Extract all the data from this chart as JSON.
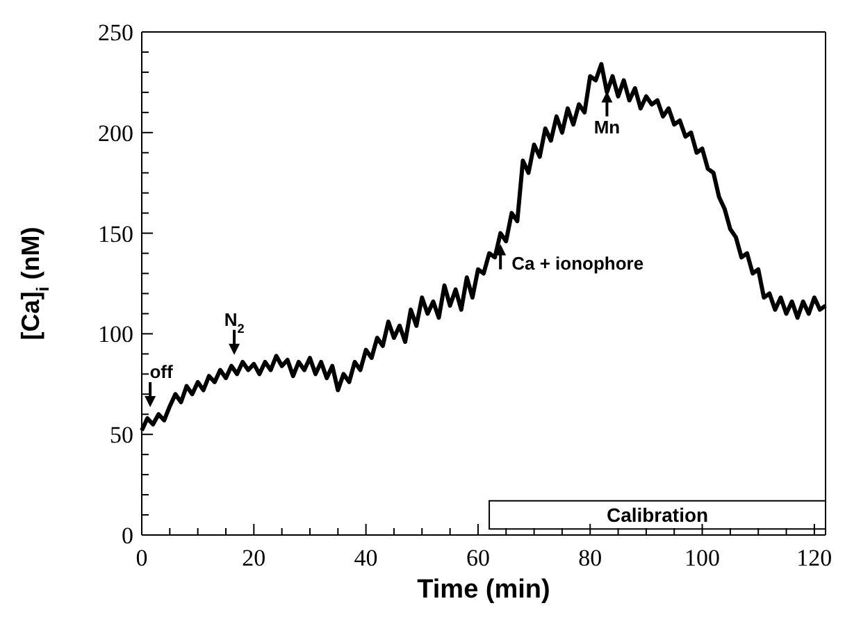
{
  "chart_data": {
    "type": "line",
    "xlabel": "Time (min)",
    "ylabel": "[Ca]$_{i}$ (nM)",
    "xlim": [
      0,
      122
    ],
    "ylim": [
      0,
      250
    ],
    "xticks": [
      0,
      {
        "value": 5,
        "label": null
      },
      {
        "value": 10,
        "label": null
      },
      {
        "value": 15,
        "label": null
      },
      20,
      {
        "value": 25,
        "label": null
      },
      {
        "value": 30,
        "label": null
      },
      {
        "value": 35,
        "label": null
      },
      40,
      {
        "value": 45,
        "label": null
      },
      {
        "value": 50,
        "label": null
      },
      {
        "value": 55,
        "label": null
      },
      60,
      {
        "value": 65,
        "label": null
      },
      {
        "value": 70,
        "label": null
      },
      {
        "value": 75,
        "label": null
      },
      80,
      {
        "value": 85,
        "label": null
      },
      {
        "value": 90,
        "label": null
      },
      {
        "value": 95,
        "label": null
      },
      100,
      {
        "value": 105,
        "label": null
      },
      {
        "value": 110,
        "label": null
      },
      {
        "value": 115,
        "label": null
      },
      120
    ],
    "yticks": [
      0,
      {
        "value": 10,
        "label": null
      },
      {
        "value": 20,
        "label": null
      },
      {
        "value": 30,
        "label": null
      },
      {
        "value": 40,
        "label": null
      },
      50,
      {
        "value": 60,
        "label": null
      },
      {
        "value": 70,
        "label": null
      },
      {
        "value": 80,
        "label": null
      },
      {
        "value": 90,
        "label": null
      },
      100,
      {
        "value": 110,
        "label": null
      },
      {
        "value": 120,
        "label": null
      },
      {
        "value": 130,
        "label": null
      },
      {
        "value": 140,
        "label": null
      },
      150,
      {
        "value": 160,
        "label": null
      },
      {
        "value": 170,
        "label": null
      },
      {
        "value": 180,
        "label": null
      },
      {
        "value": 190,
        "label": null
      },
      200,
      {
        "value": 210,
        "label": null
      },
      {
        "value": 220,
        "label": null
      },
      {
        "value": 230,
        "label": null
      },
      {
        "value": 240,
        "label": null
      },
      250
    ],
    "grid": false,
    "marker": "none",
    "line_style": "solid",
    "series": [
      {
        "color": "#000000",
        "x": [
          0,
          1,
          2,
          3,
          4,
          5,
          6,
          7,
          8,
          9,
          10,
          11,
          12,
          13,
          14,
          15,
          16,
          17,
          18,
          19,
          20,
          21,
          22,
          23,
          24,
          25,
          26,
          27,
          28,
          29,
          30,
          31,
          32,
          33,
          34,
          35,
          36,
          37,
          38,
          39,
          40,
          41,
          42,
          43,
          44,
          45,
          46,
          47,
          48,
          49,
          50,
          51,
          52,
          53,
          54,
          55,
          56,
          57,
          58,
          59,
          60,
          61,
          62,
          63,
          64,
          65,
          66,
          67,
          68,
          69,
          70,
          71,
          72,
          73,
          74,
          75,
          76,
          77,
          78,
          79,
          80,
          81,
          82,
          83,
          84,
          85,
          86,
          87,
          88,
          89,
          90,
          91,
          92,
          93,
          94,
          95,
          96,
          97,
          98,
          99,
          100,
          101,
          102,
          103,
          104,
          105,
          106,
          107,
          108,
          109,
          110,
          111,
          112,
          113,
          114,
          115,
          116,
          117,
          118,
          119,
          120,
          121,
          122
        ],
        "values": [
          52,
          58,
          55,
          60,
          57,
          64,
          70,
          66,
          74,
          70,
          76,
          72,
          79,
          76,
          82,
          78,
          84,
          80,
          86,
          82,
          85,
          80,
          86,
          82,
          89,
          84,
          87,
          79,
          86,
          82,
          88,
          80,
          86,
          78,
          84,
          72,
          80,
          76,
          86,
          82,
          92,
          88,
          98,
          94,
          106,
          98,
          104,
          96,
          112,
          104,
          118,
          110,
          116,
          108,
          124,
          114,
          122,
          112,
          128,
          118,
          132,
          130,
          140,
          138,
          150,
          146,
          160,
          156,
          186,
          180,
          194,
          188,
          202,
          196,
          208,
          200,
          212,
          204,
          214,
          210,
          228,
          226,
          234,
          220,
          228,
          218,
          226,
          216,
          222,
          212,
          218,
          214,
          216,
          208,
          212,
          204,
          206,
          198,
          200,
          190,
          192,
          182,
          180,
          168,
          162,
          152,
          148,
          138,
          140,
          130,
          132,
          118,
          120,
          112,
          118,
          110,
          116,
          108,
          116,
          110,
          118,
          112,
          114
        ]
      }
    ],
    "annotations": [
      {
        "text": "off",
        "x": 1.5,
        "y": 58
      },
      {
        "text": "N$_{2}$",
        "x": 16.5,
        "y": 84
      },
      {
        "text": "Ca + ionophore",
        "x": 64,
        "y": 150
      },
      {
        "text": "Mn",
        "x": 83,
        "y": 226
      }
    ],
    "bands": [
      {
        "axis": "x",
        "from": 62,
        "to": 122,
        "label": "Calibration"
      }
    ]
  }
}
